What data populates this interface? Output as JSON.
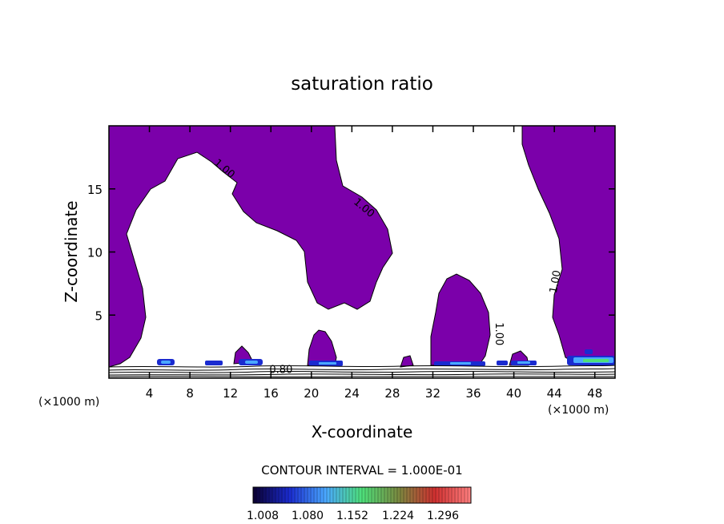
{
  "chart_data": {
    "type": "heatmap",
    "title": "saturation ratio",
    "xlabel": "X-coordinate",
    "ylabel": "Z-coordinate",
    "x_unit_left": "(×1000 m)",
    "x_unit_right": "(×1000 m)",
    "xlim": [
      0,
      50
    ],
    "ylim": [
      0,
      20
    ],
    "xticks": [
      4,
      8,
      12,
      16,
      20,
      24,
      28,
      32,
      36,
      40,
      44,
      48
    ],
    "yticks": [
      5,
      10,
      15
    ],
    "contour_interval_text": "CONTOUR INTERVAL = 1.000E-01",
    "colorbar": {
      "labels": [
        "1.008",
        "1.080",
        "1.152",
        "1.224",
        "1.296"
      ],
      "colors": [
        "#0b0030",
        "#1a2bd0",
        "#4aa8ff",
        "#4ee07a",
        "#7a8a40",
        "#d03030",
        "#ff8080"
      ]
    },
    "fill_color": "#7b00aa",
    "contour_labels": [
      {
        "text": "1.00",
        "x": 11.2,
        "y": 16.4
      },
      {
        "text": "1.00",
        "x": 25.0,
        "y": 13.3
      },
      {
        "text": "1.00",
        "x": 44.4,
        "y": 7.6
      },
      {
        "text": "1.00",
        "x": 38.2,
        "y": 3.5
      },
      {
        "text": "0.80",
        "x": 17.0,
        "y": 0.4
      }
    ]
  }
}
